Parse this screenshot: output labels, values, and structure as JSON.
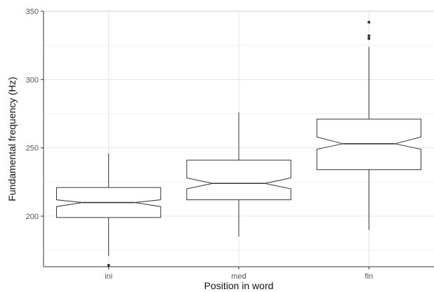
{
  "chart_data": {
    "type": "boxplot",
    "notched": true,
    "grid": true,
    "xlabel": "Position in word",
    "ylabel": "Fundamental frequency (Hz)",
    "ylim": [
      163,
      350
    ],
    "yticks": [
      200,
      250,
      300,
      350
    ],
    "yminor": [
      175,
      225,
      275,
      325
    ],
    "categories": [
      "ini",
      "med",
      "fin"
    ],
    "boxes": [
      {
        "category": "ini",
        "whisker_low": 171,
        "q1": 199,
        "median": 210,
        "q3": 221,
        "whisker_high": 246,
        "notch_low": 207,
        "notch_high": 212,
        "outliers": [
          164
        ]
      },
      {
        "category": "med",
        "whisker_low": 185,
        "q1": 212,
        "median": 224,
        "q3": 241,
        "whisker_high": 276,
        "notch_low": 220,
        "notch_high": 228,
        "outliers": []
      },
      {
        "category": "fin",
        "whisker_low": 190,
        "q1": 234,
        "median": 253,
        "q3": 271,
        "whisker_high": 324,
        "notch_low": 249,
        "notch_high": 258,
        "outliers": [
          330,
          332,
          342
        ]
      }
    ],
    "colors": {
      "box_stroke": "#333333",
      "box_fill": "#ffffff",
      "grid": "#e4e4e4",
      "outlier": "#333333"
    }
  }
}
